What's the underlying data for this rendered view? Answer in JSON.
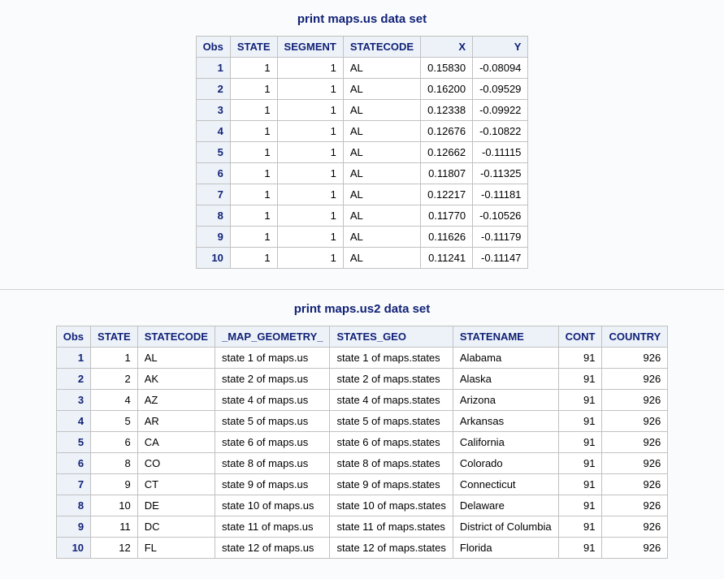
{
  "table1": {
    "title": "print maps.us data set",
    "columns": [
      "Obs",
      "STATE",
      "SEGMENT",
      "STATECODE",
      "X",
      "Y"
    ],
    "rows": [
      {
        "obs": "1",
        "state": "1",
        "segment": "1",
        "statecode": "AL",
        "x": "0.15830",
        "y": "-0.08094"
      },
      {
        "obs": "2",
        "state": "1",
        "segment": "1",
        "statecode": "AL",
        "x": "0.16200",
        "y": "-0.09529"
      },
      {
        "obs": "3",
        "state": "1",
        "segment": "1",
        "statecode": "AL",
        "x": "0.12338",
        "y": "-0.09922"
      },
      {
        "obs": "4",
        "state": "1",
        "segment": "1",
        "statecode": "AL",
        "x": "0.12676",
        "y": "-0.10822"
      },
      {
        "obs": "5",
        "state": "1",
        "segment": "1",
        "statecode": "AL",
        "x": "0.12662",
        "y": "-0.11115"
      },
      {
        "obs": "6",
        "state": "1",
        "segment": "1",
        "statecode": "AL",
        "x": "0.11807",
        "y": "-0.11325"
      },
      {
        "obs": "7",
        "state": "1",
        "segment": "1",
        "statecode": "AL",
        "x": "0.12217",
        "y": "-0.11181"
      },
      {
        "obs": "8",
        "state": "1",
        "segment": "1",
        "statecode": "AL",
        "x": "0.11770",
        "y": "-0.10526"
      },
      {
        "obs": "9",
        "state": "1",
        "segment": "1",
        "statecode": "AL",
        "x": "0.11626",
        "y": "-0.11179"
      },
      {
        "obs": "10",
        "state": "1",
        "segment": "1",
        "statecode": "AL",
        "x": "0.11241",
        "y": "-0.11147"
      }
    ]
  },
  "table2": {
    "title": "print maps.us2 data set",
    "columns": [
      "Obs",
      "STATE",
      "STATECODE",
      "_MAP_GEOMETRY_",
      "STATES_GEO",
      "STATENAME",
      "CONT",
      "COUNTRY"
    ],
    "rows": [
      {
        "obs": "1",
        "state": "1",
        "statecode": "AL",
        "mapgeom": "state 1 of maps.us",
        "statesgeo": "state 1 of maps.states",
        "statename": "Alabama",
        "cont": "91",
        "country": "926"
      },
      {
        "obs": "2",
        "state": "2",
        "statecode": "AK",
        "mapgeom": "state 2 of maps.us",
        "statesgeo": "state 2 of maps.states",
        "statename": "Alaska",
        "cont": "91",
        "country": "926"
      },
      {
        "obs": "3",
        "state": "4",
        "statecode": "AZ",
        "mapgeom": "state 4 of maps.us",
        "statesgeo": "state 4 of maps.states",
        "statename": "Arizona",
        "cont": "91",
        "country": "926"
      },
      {
        "obs": "4",
        "state": "5",
        "statecode": "AR",
        "mapgeom": "state 5 of maps.us",
        "statesgeo": "state 5 of maps.states",
        "statename": "Arkansas",
        "cont": "91",
        "country": "926"
      },
      {
        "obs": "5",
        "state": "6",
        "statecode": "CA",
        "mapgeom": "state 6 of maps.us",
        "statesgeo": "state 6 of maps.states",
        "statename": "California",
        "cont": "91",
        "country": "926"
      },
      {
        "obs": "6",
        "state": "8",
        "statecode": "CO",
        "mapgeom": "state 8 of maps.us",
        "statesgeo": "state 8 of maps.states",
        "statename": "Colorado",
        "cont": "91",
        "country": "926"
      },
      {
        "obs": "7",
        "state": "9",
        "statecode": "CT",
        "mapgeom": "state 9 of maps.us",
        "statesgeo": "state 9 of maps.states",
        "statename": "Connecticut",
        "cont": "91",
        "country": "926"
      },
      {
        "obs": "8",
        "state": "10",
        "statecode": "DE",
        "mapgeom": "state 10 of maps.us",
        "statesgeo": "state 10 of maps.states",
        "statename": "Delaware",
        "cont": "91",
        "country": "926"
      },
      {
        "obs": "9",
        "state": "11",
        "statecode": "DC",
        "mapgeom": "state 11 of maps.us",
        "statesgeo": "state 11 of maps.states",
        "statename": "District of Columbia",
        "cont": "91",
        "country": "926"
      },
      {
        "obs": "10",
        "state": "12",
        "statecode": "FL",
        "mapgeom": "state 12 of maps.us",
        "statesgeo": "state 12 of maps.states",
        "statename": "Florida",
        "cont": "91",
        "country": "926"
      }
    ]
  }
}
